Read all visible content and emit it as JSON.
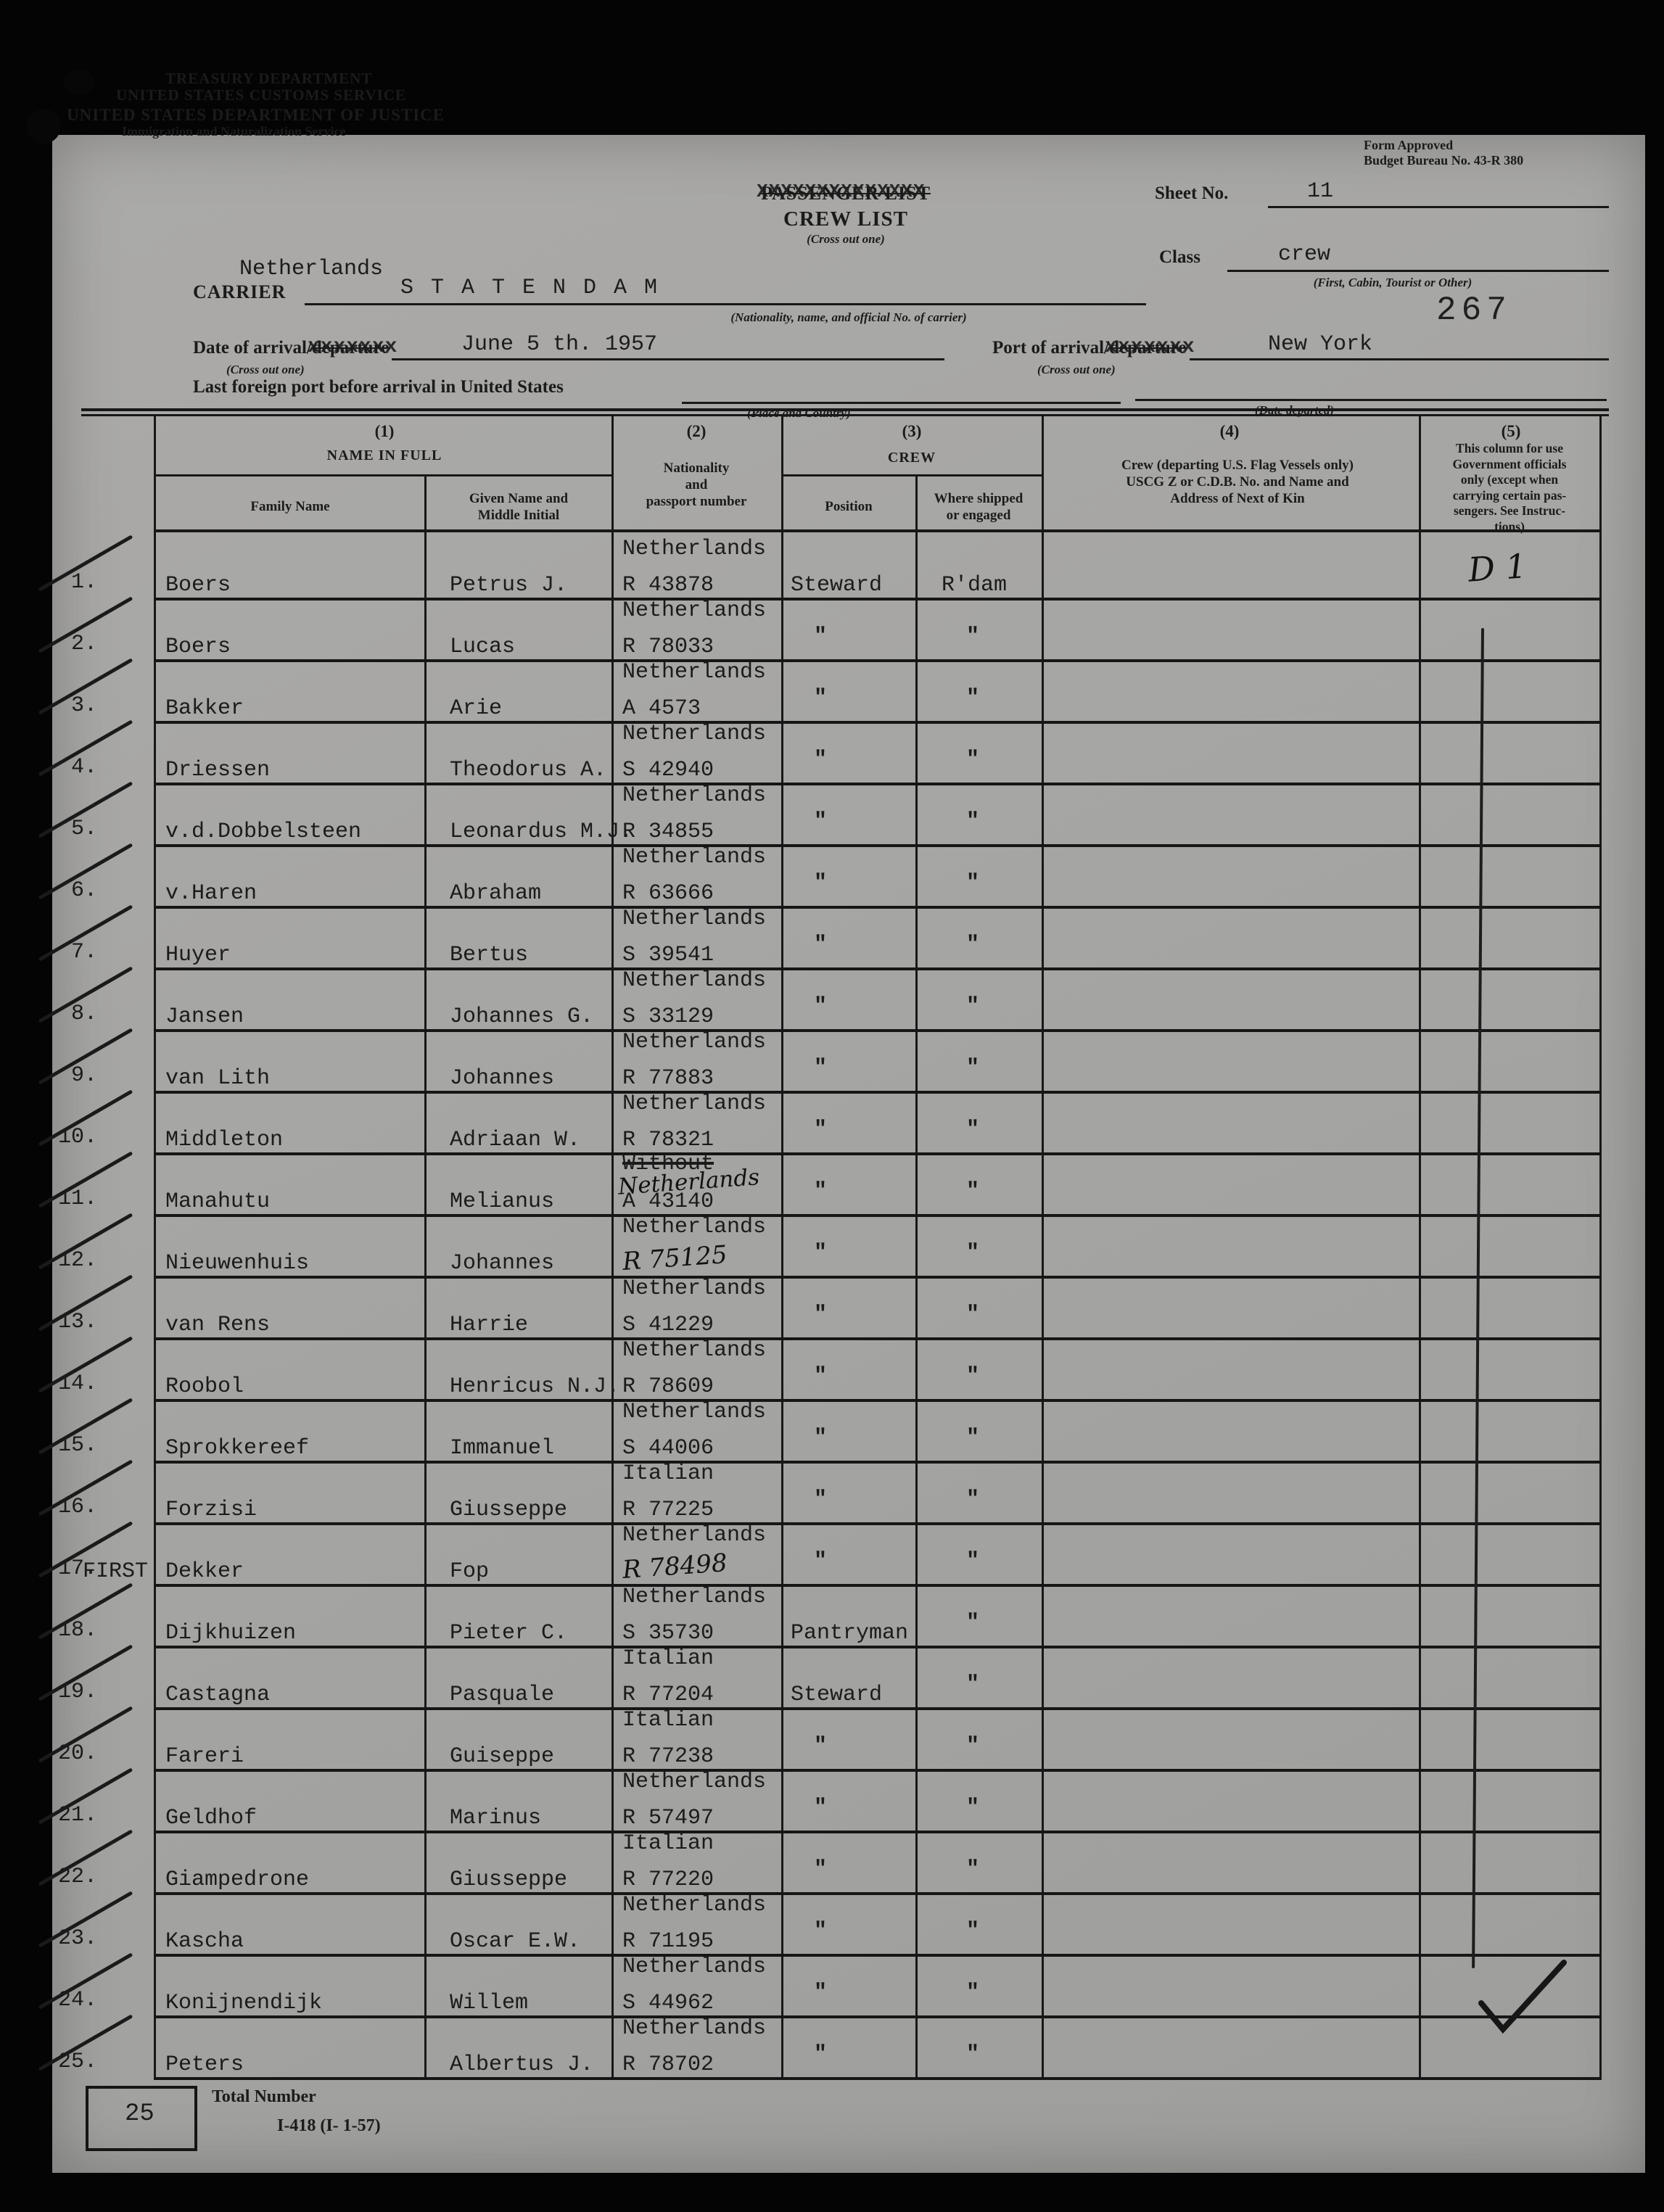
{
  "header": {
    "agency_line1": "TREASURY DEPARTMENT",
    "agency_line2": "UNITED STATES CUSTOMS SERVICE",
    "agency_line3": "UNITED STATES DEPARTMENT OF JUSTICE",
    "agency_line4": "Immigration and Naturalization Service",
    "form_approved_1": "Form Approved",
    "form_approved_2": "Budget Bureau No. 43-R 380",
    "list_title_crossed": "PASSENGER LIST",
    "list_title_overlay": "XXXXXXXXXXXXXX",
    "list_title": "CREW LIST",
    "cross_out_one": "(Cross out one)",
    "sheet_no_label": "Sheet No.",
    "sheet_no_value": "11",
    "class_label": "Class",
    "class_value": "crew",
    "class_hint": "(First, Cabin, Tourist or Other)",
    "stamp_number": "267",
    "carrier_nationality": "Netherlands",
    "carrier_label": "CARRIER",
    "carrier_value": "S T A T E N D A M",
    "carrier_hint": "(Nationality, name, and official No. of carrier)",
    "date_label_prefix": "Date of arrival/",
    "date_label_crossed": "departure",
    "strikeover": "xxxxxxx",
    "date_value": "June 5 th. 1957",
    "port_label_prefix": "Port of arrival/",
    "port_label_crossed": "departure",
    "port_value": "New York",
    "last_foreign_label": "Last foreign port before arrival in United States",
    "place_country_hint": "(Place and Country)",
    "date_departed_hint": "(Date departed)"
  },
  "table": {
    "col1_no": "(1)",
    "col1_title": "NAME IN FULL",
    "col1a": "Family Name",
    "col1b": "Given Name and\nMiddle Initial",
    "col2_no": "(2)",
    "col2_title": "Nationality\nand\npassport number",
    "col3_no": "(3)",
    "col3_title": "CREW",
    "col3a": "Position",
    "col3b": "Where shipped\nor engaged",
    "col4_no": "(4)",
    "col4_title": "Crew (departing U.S. Flag Vessels only)\nUSCG Z or C.D.B. No. and Name and\nAddress of Next of Kin",
    "col5_no": "(5)",
    "col5_title": "This column for use\nGovernment officials\nonly (except when\ncarrying certain pas-\nsengers. See Instruc-\ntions)",
    "rows": [
      {
        "num": "1.",
        "family": "Boers",
        "given": "Petrus J.",
        "nationality": "Netherlands",
        "passport": "R 43878",
        "position": "Steward",
        "where": "R'dam"
      },
      {
        "num": "2.",
        "family": "Boers",
        "given": "Lucas",
        "nationality": "Netherlands",
        "passport": "R 78033",
        "position": "\"",
        "where": "\""
      },
      {
        "num": "3.",
        "family": "Bakker",
        "given": "Arie",
        "nationality": "Netherlands",
        "passport": "A 4573",
        "position": "\"",
        "where": "\""
      },
      {
        "num": "4.",
        "family": "Driessen",
        "given": "Theodorus A.",
        "nationality": "Netherlands",
        "passport": "S 42940",
        "position": "\"",
        "where": "\""
      },
      {
        "num": "5.",
        "family": "v.d.Dobbelsteen",
        "given": "Leonardus M.J.",
        "nationality": "Netherlands",
        "passport": "R 34855",
        "position": "\"",
        "where": "\""
      },
      {
        "num": "6.",
        "family": "v.Haren",
        "given": "Abraham",
        "nationality": "Netherlands",
        "passport": "R 63666",
        "position": "\"",
        "where": "\""
      },
      {
        "num": "7.",
        "family": "Huyer",
        "given": "Bertus",
        "nationality": "Netherlands",
        "passport": "S 39541",
        "position": "\"",
        "where": "\""
      },
      {
        "num": "8.",
        "family": "Jansen",
        "given": "Johannes G.",
        "nationality": "Netherlands",
        "passport": "S 33129",
        "position": "\"",
        "where": "\""
      },
      {
        "num": "9.",
        "family": "van Lith",
        "given": "Johannes",
        "nationality": "Netherlands",
        "passport": "R 77883",
        "position": "\"",
        "where": "\""
      },
      {
        "num": "10.",
        "family": "Middleton",
        "given": "Adriaan W.",
        "nationality": "Netherlands",
        "passport": "R 78321",
        "position": "\"",
        "where": "\""
      },
      {
        "num": "11.",
        "family": "Manahutu",
        "given": "Melianus",
        "nationality_struck": "Without",
        "nationality_handwritten": "Netherlands",
        "passport": "A 43140",
        "position": "\"",
        "where": "\""
      },
      {
        "num": "12.",
        "family": "Nieuwenhuis",
        "given": "Johannes",
        "nationality": "Netherlands",
        "passport": "R 75125",
        "passport_handwritten": true,
        "position": "\"",
        "where": "\""
      },
      {
        "num": "13.",
        "family": "van Rens",
        "given": "Harrie",
        "nationality": "Netherlands",
        "passport": "S 41229",
        "position": "\"",
        "where": "\""
      },
      {
        "num": "14.",
        "family": "Roobol",
        "given": "Henricus N.J.",
        "nationality": "Netherlands",
        "passport": "R 78609",
        "position": "\"",
        "where": "\""
      },
      {
        "num": "15.",
        "family": "Sprokkereef",
        "given": "Immanuel",
        "nationality": "Netherlands",
        "passport": "S 44006",
        "position": "\"",
        "where": "\""
      },
      {
        "num": "16.",
        "family": "Forzisi",
        "given": "Giusseppe",
        "nationality": "Italian",
        "passport": "R 77225",
        "position": "\"",
        "where": "\""
      },
      {
        "num": "17.",
        "family": "Dekker",
        "family_prefix": "FIRST",
        "given": "Fop",
        "nationality": "Netherlands",
        "passport": "R 78498",
        "passport_handwritten": true,
        "position": "\"",
        "where": "\""
      },
      {
        "num": "18.",
        "family": "Dijkhuizen",
        "given": "Pieter C.",
        "nationality": "Netherlands",
        "passport": "S 35730",
        "position": "Pantryman",
        "where": "\""
      },
      {
        "num": "19.",
        "family": "Castagna",
        "given": "Pasquale",
        "nationality": "Italian",
        "passport": "R 77204",
        "position": "Steward",
        "where": "\""
      },
      {
        "num": "20.",
        "family": "Fareri",
        "given": "Guiseppe",
        "nationality": "Italian",
        "passport": "R 77238",
        "position": "\"",
        "where": "\""
      },
      {
        "num": "21.",
        "family": "Geldhof",
        "given": "Marinus",
        "nationality": "Netherlands",
        "passport": "R 57497",
        "position": "\"",
        "where": "\""
      },
      {
        "num": "22.",
        "family": "Giampedrone",
        "given": "Giusseppe",
        "nationality": "Italian",
        "passport": "R 77220",
        "position": "\"",
        "where": "\""
      },
      {
        "num": "23.",
        "family": "Kascha",
        "given": "Oscar E.W.",
        "nationality": "Netherlands",
        "passport": "R 71195",
        "position": "\"",
        "where": "\""
      },
      {
        "num": "24.",
        "family": "Konijnendijk",
        "given": "Willem",
        "nationality": "Netherlands",
        "passport": "S 44962",
        "position": "\"",
        "where": "\""
      },
      {
        "num": "25.",
        "family": "Peters",
        "given": "Albertus J.",
        "nationality": "Netherlands",
        "passport": "R 78702",
        "position": "\"",
        "where": "\""
      }
    ]
  },
  "annotations": {
    "col5_mark": "D 1"
  },
  "footer": {
    "total_label": "Total Number",
    "total_value": "25",
    "form_code": "I-418 (I- 1-57)"
  }
}
